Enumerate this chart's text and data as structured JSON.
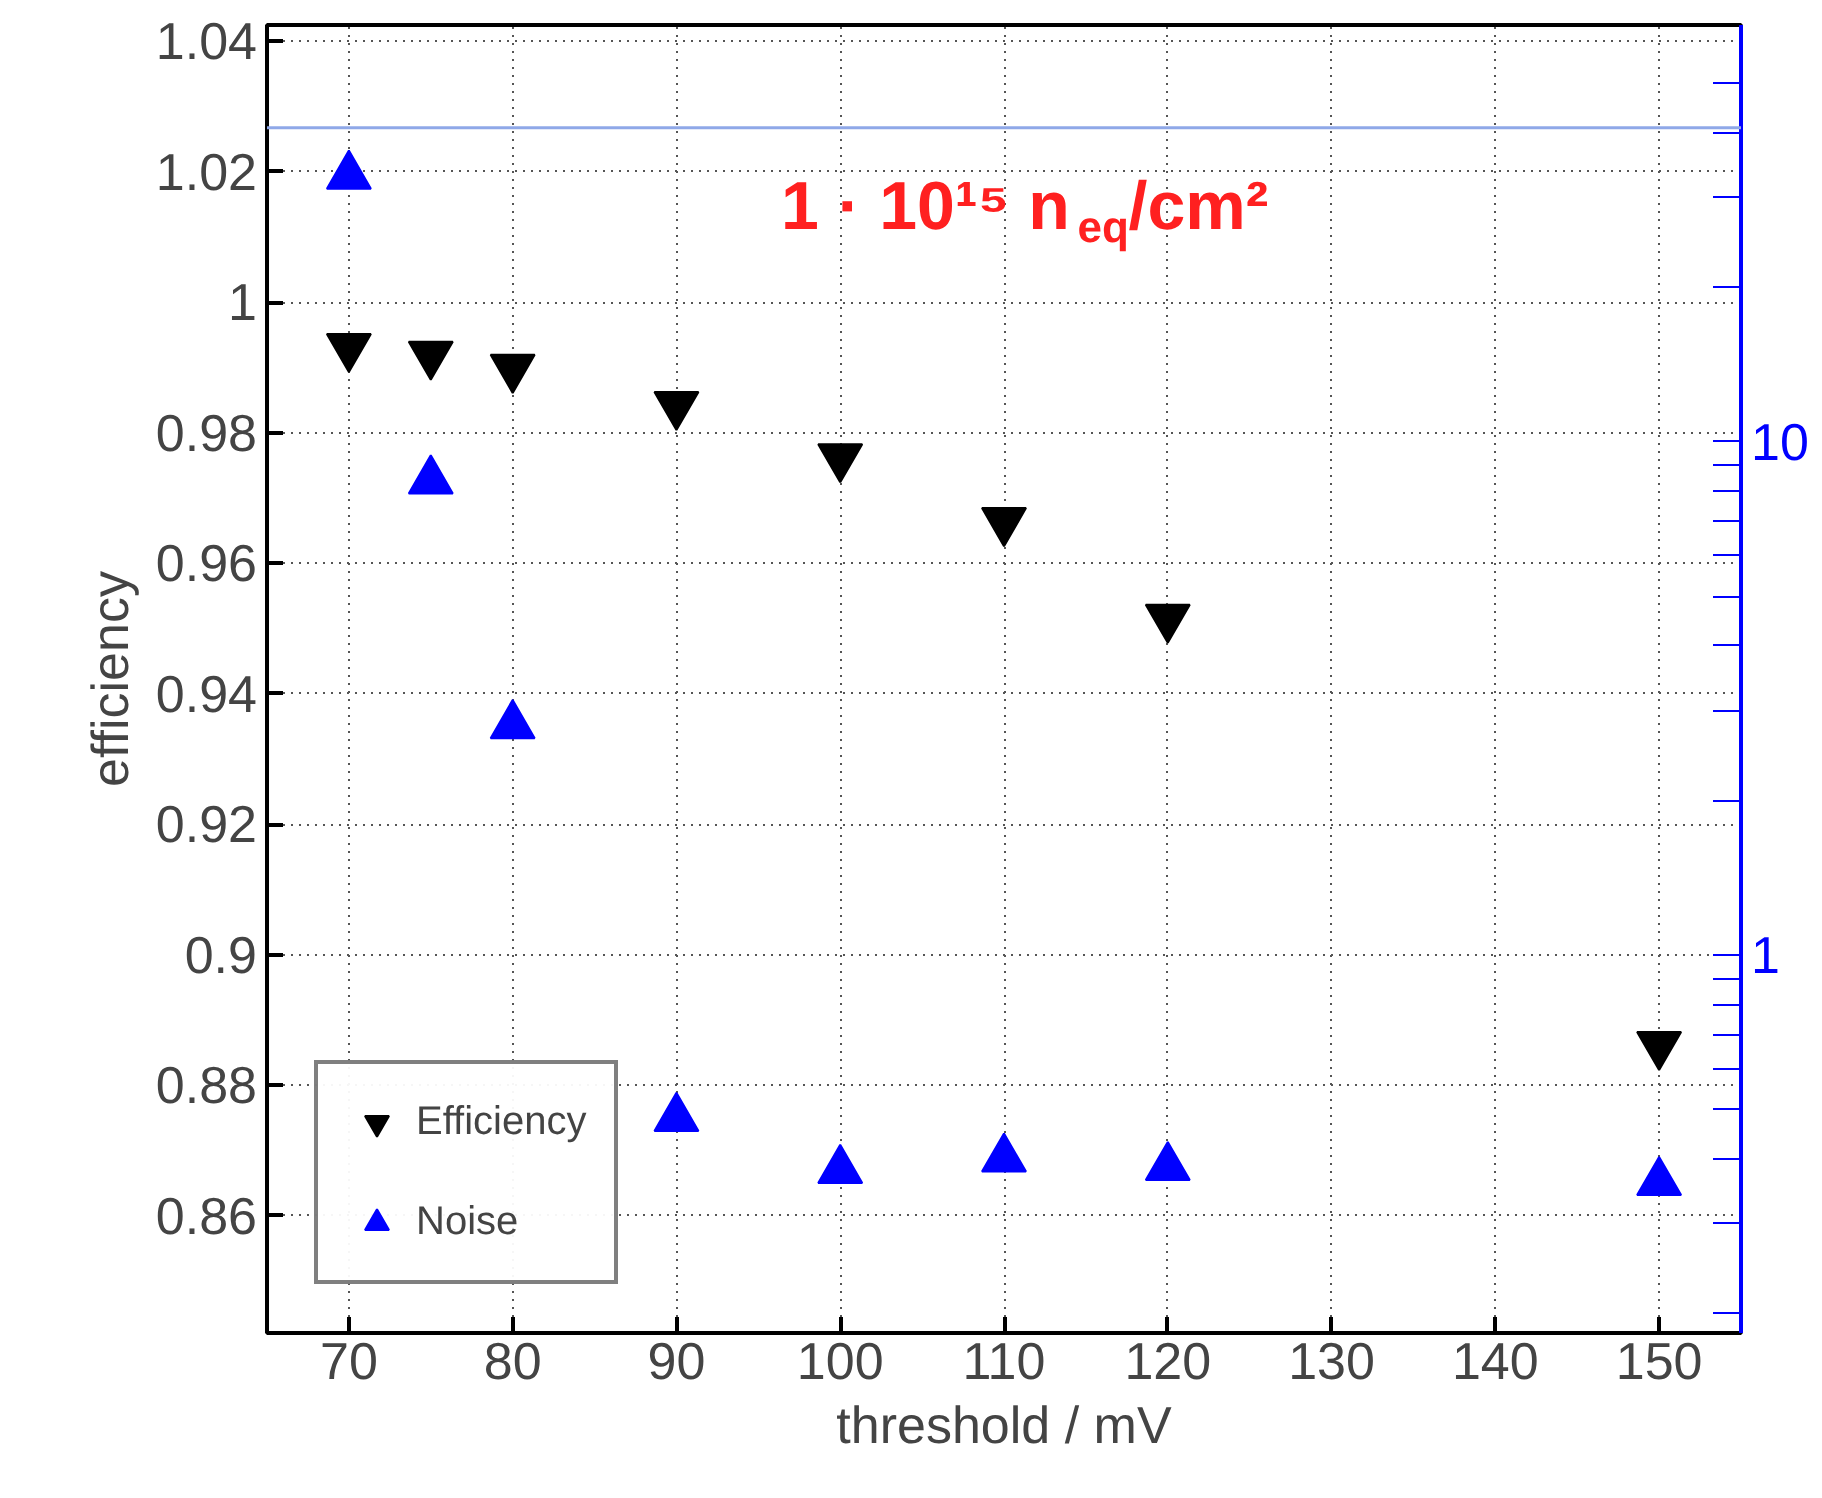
{
  "chart_data": {
    "type": "scatter",
    "xlabel": "threshold / mV",
    "ylabel": "efficiency",
    "x": [
      70,
      75,
      80,
      90,
      100,
      110,
      120,
      150
    ],
    "series": [
      {
        "name": "Efficiency",
        "color": "#000000",
        "values": [
          0.9932,
          0.992,
          0.99,
          0.9843,
          0.9763,
          0.9665,
          0.9517,
          0.8862
        ]
      },
      {
        "name": "Noise",
        "color": "#0000ff",
        "marker": "triangle",
        "axis": "y2",
        "values": [
          33,
          8.4,
          2.8,
          0.48,
          0.38,
          0.4,
          0.385,
          0.36
        ]
      }
    ],
    "xlim": [
      65,
      155
    ],
    "xticks": [
      70,
      80,
      90,
      100,
      110,
      120,
      130,
      140,
      150
    ],
    "ylim": [
      0.842,
      1.0425
    ],
    "yticks": [
      0.86,
      0.88,
      {
        "value": 0.9,
        "label": "0.9"
      },
      0.92,
      0.94,
      0.96,
      0.98,
      1,
      1.02,
      1.04
    ],
    "y2lim": [
      0.183,
      65
    ],
    "log": "y2",
    "y2ticks": [
      {
        "value": 0.2,
        "label": null
      },
      {
        "value": 0.3,
        "label": null
      },
      {
        "value": 0.4,
        "label": null
      },
      {
        "value": 0.5,
        "label": null
      },
      {
        "value": 0.6,
        "label": null
      },
      {
        "value": 0.7,
        "label": null
      },
      {
        "value": 0.8,
        "label": null
      },
      {
        "value": 0.9,
        "label": null
      },
      1,
      {
        "value": 2,
        "label": null
      },
      {
        "value": 3,
        "label": null
      },
      {
        "value": 4,
        "label": null
      },
      {
        "value": 5,
        "label": null
      },
      {
        "value": 6,
        "label": null
      },
      {
        "value": 7,
        "label": null
      },
      {
        "value": 8,
        "label": null
      },
      {
        "value": 9,
        "label": null
      },
      10,
      {
        "value": 20,
        "label": null
      },
      {
        "value": 30,
        "label": null
      },
      {
        "value": 40,
        "label": null
      },
      {
        "value": 50,
        "label": null
      }
    ],
    "ref_lines": [
      {
        "axis": "y2",
        "value": 41,
        "label": null,
        "color": "#8fa8e8"
      }
    ],
    "annotations": [
      "1 · 10¹⁵ n$_{eq}$/cm²"
    ],
    "grid": true,
    "legend": "bottom left"
  }
}
